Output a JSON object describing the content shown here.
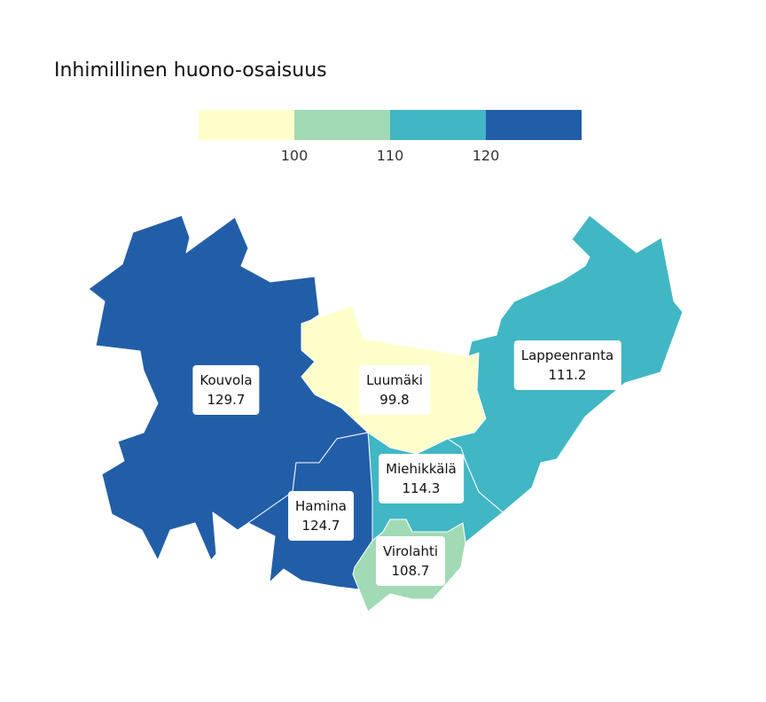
{
  "title": "Inhimillinen huono-osaisuus",
  "legend": {
    "bins": [
      {
        "color": "#ffffcc"
      },
      {
        "color": "#a1dab4"
      },
      {
        "color": "#41b6c4"
      },
      {
        "color": "#225ea8"
      }
    ],
    "thresholds": [
      "100",
      "110",
      "120"
    ]
  },
  "regions": [
    {
      "name": "Kouvola",
      "value": "129.7",
      "color": "#225ea8"
    },
    {
      "name": "Luumäki",
      "value": "99.8",
      "color": "#ffffcc"
    },
    {
      "name": "Lappeenranta",
      "value": "111.2",
      "color": "#41b6c4"
    },
    {
      "name": "Miehikkälä",
      "value": "114.3",
      "color": "#41b6c4"
    },
    {
      "name": "Hamina",
      "value": "124.7",
      "color": "#225ea8"
    },
    {
      "name": "Virolahti",
      "value": "108.7",
      "color": "#a1dab4"
    }
  ]
}
